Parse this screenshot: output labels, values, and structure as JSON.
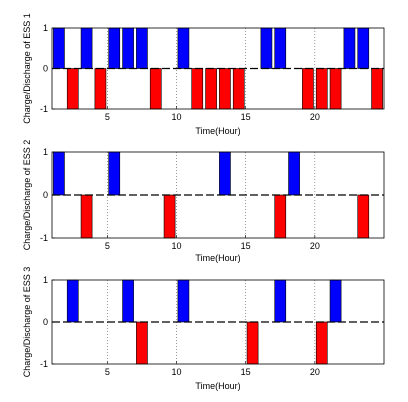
{
  "chart_data": [
    {
      "type": "bar",
      "ylabel": "Charge/Discharge of ESS 1",
      "xlabel": "Time(Hour)",
      "xlim": [
        1,
        25
      ],
      "ylim": [
        -1,
        1
      ],
      "xticks": [
        5,
        10,
        15,
        20
      ],
      "yticks": [
        -1,
        0,
        1
      ],
      "x": [
        1,
        2,
        3,
        4,
        5,
        6,
        7,
        8,
        9,
        10,
        11,
        12,
        13,
        14,
        15,
        16,
        17,
        18,
        19,
        20,
        21,
        22,
        23,
        24
      ],
      "values": [
        1,
        -1,
        1,
        -1,
        1,
        1,
        1,
        -1,
        0,
        1,
        -1,
        -1,
        -1,
        -1,
        0,
        1,
        1,
        0,
        -1,
        -1,
        -1,
        1,
        1,
        -1
      ]
    },
    {
      "type": "bar",
      "ylabel": "Charge/Discharge of ESS 2",
      "xlabel": "Time(Hour)",
      "xlim": [
        1,
        25
      ],
      "ylim": [
        -1,
        1
      ],
      "xticks": [
        5,
        10,
        15,
        20
      ],
      "yticks": [
        -1,
        0,
        1
      ],
      "x": [
        1,
        2,
        3,
        4,
        5,
        6,
        7,
        8,
        9,
        10,
        11,
        12,
        13,
        14,
        15,
        16,
        17,
        18,
        19,
        20,
        21,
        22,
        23,
        24
      ],
      "values": [
        1,
        0,
        -1,
        0,
        1,
        0,
        0,
        0,
        -1,
        0,
        0,
        0,
        1,
        0,
        0,
        0,
        -1,
        1,
        0,
        0,
        0,
        0,
        -1,
        0
      ]
    },
    {
      "type": "bar",
      "ylabel": "Charge/Discharge of ESS 3",
      "xlabel": "Time(Hour)",
      "xlim": [
        1,
        25
      ],
      "ylim": [
        -1,
        1
      ],
      "xticks": [
        5,
        10,
        15,
        20
      ],
      "yticks": [
        -1,
        0,
        1
      ],
      "x": [
        1,
        2,
        3,
        4,
        5,
        6,
        7,
        8,
        9,
        10,
        11,
        12,
        13,
        14,
        15,
        16,
        17,
        18,
        19,
        20,
        21,
        22,
        23,
        24
      ],
      "values": [
        0,
        1,
        0,
        0,
        0,
        1,
        -1,
        0,
        0,
        1,
        0,
        0,
        0,
        0,
        -1,
        0,
        1,
        0,
        0,
        -1,
        1,
        0,
        0,
        0
      ]
    }
  ],
  "colors": {
    "charge": "#0000ff",
    "discharge": "#ff0000",
    "axis": "#000000"
  }
}
